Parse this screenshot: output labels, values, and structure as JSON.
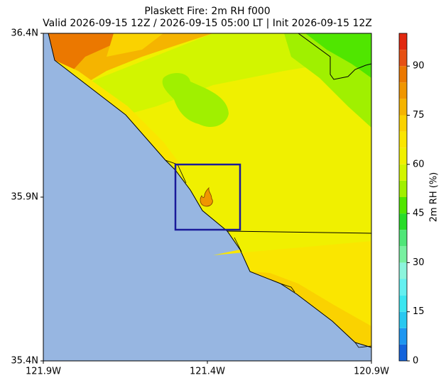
{
  "chart_data": {
    "type": "map",
    "title": "Plaskett Fire: 2m RH f000",
    "subtitle": "Valid 2026-09-15 12Z / 2026-09-15 05:00 LT | Init 2026-09-15 12Z",
    "xlim": [
      -121.9,
      -120.9
    ],
    "ylim": [
      35.4,
      36.4
    ],
    "xticks": [
      {
        "value": -121.9,
        "label": "121.9W"
      },
      {
        "value": -121.4,
        "label": "121.4W"
      },
      {
        "value": -120.9,
        "label": "120.9W"
      }
    ],
    "yticks": [
      {
        "value": 35.4,
        "label": "35.4N"
      },
      {
        "value": 35.9,
        "label": "35.9N"
      },
      {
        "value": 36.4,
        "label": "36.4N"
      }
    ],
    "colorbar": {
      "label": "2m RH (%)",
      "lim": [
        0,
        100
      ],
      "ticks": [
        0,
        15,
        30,
        45,
        60,
        75,
        90
      ],
      "levels": [
        0,
        5,
        10,
        15,
        20,
        25,
        30,
        35,
        40,
        45,
        50,
        55,
        60,
        65,
        70,
        75,
        80,
        85,
        90,
        95,
        100
      ],
      "colors": [
        "#1464dc",
        "#1e96f0",
        "#28c8f0",
        "#3ce6f0",
        "#64f0f0",
        "#8cf5dc",
        "#78f0a0",
        "#50e678",
        "#28dc28",
        "#50e600",
        "#a0f000",
        "#d2f500",
        "#f0f000",
        "#fae600",
        "#fad200",
        "#f5b400",
        "#f09600",
        "#eb7800",
        "#e65014",
        "#e1280f"
      ]
    }
  }
}
